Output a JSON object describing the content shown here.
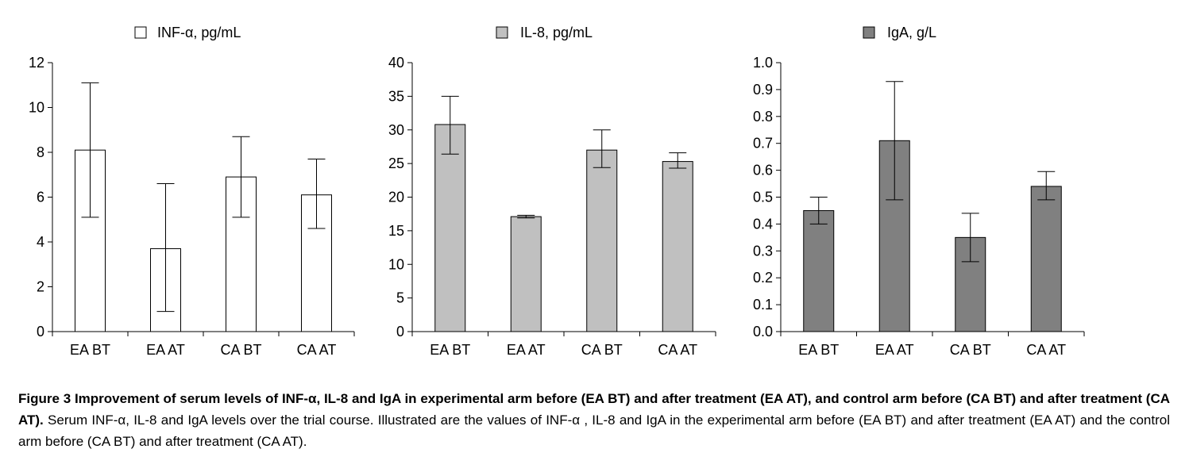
{
  "chart_data": [
    {
      "type": "bar",
      "legend": "INF-α, pg/mL",
      "categories": [
        "EA BT",
        "EA AT",
        "CA BT",
        "CA AT"
      ],
      "values": [
        8.1,
        3.7,
        6.9,
        6.1
      ],
      "error_low": [
        5.1,
        0.9,
        5.1,
        4.6
      ],
      "error_high": [
        11.1,
        6.6,
        8.7,
        7.7
      ],
      "yticks": [
        "0",
        "2",
        "4",
        "6",
        "8",
        "10",
        "12"
      ],
      "ylim": [
        0,
        12
      ],
      "fill": "#ffffff"
    },
    {
      "type": "bar",
      "legend": "IL-8, pg/mL",
      "categories": [
        "EA BT",
        "EA AT",
        "CA BT",
        "CA AT"
      ],
      "values": [
        30.8,
        17.1,
        27.0,
        25.3
      ],
      "error_low": [
        26.4,
        16.9,
        24.4,
        24.3
      ],
      "error_high": [
        35.0,
        17.3,
        30.0,
        26.6
      ],
      "yticks": [
        "0",
        "5",
        "10",
        "15",
        "20",
        "25",
        "30",
        "35",
        "40"
      ],
      "ylim": [
        0,
        40
      ],
      "fill": "#c0c0c0"
    },
    {
      "type": "bar",
      "legend": "IgA, g/L",
      "categories": [
        "EA BT",
        "EA AT",
        "CA BT",
        "CA AT"
      ],
      "values": [
        0.45,
        0.71,
        0.35,
        0.54
      ],
      "error_low": [
        0.4,
        0.49,
        0.26,
        0.49
      ],
      "error_high": [
        0.5,
        0.93,
        0.44,
        0.595
      ],
      "yticks": [
        "0.0",
        "0.1",
        "0.2",
        "0.3",
        "0.4",
        "0.5",
        "0.6",
        "0.7",
        "0.8",
        "0.9",
        "1.0"
      ],
      "ylim": [
        0,
        1.0
      ],
      "fill": "#808080"
    }
  ],
  "caption": {
    "bold": "Figure 3  Improvement of serum levels of INF-α, IL-8 and IgA in experimental arm before (EA BT) and after treatment (EA AT), and control arm before  (CA BT) and after treatment (CA AT).",
    "text": " Serum INF-α, IL-8 and IgA levels over the trial course. Illustrated are the values of INF-α , IL-8 and IgA in the experimental arm before (EA BT) and after treatment (EA AT) and the control arm before (CA BT) and after treatment (CA AT)."
  }
}
